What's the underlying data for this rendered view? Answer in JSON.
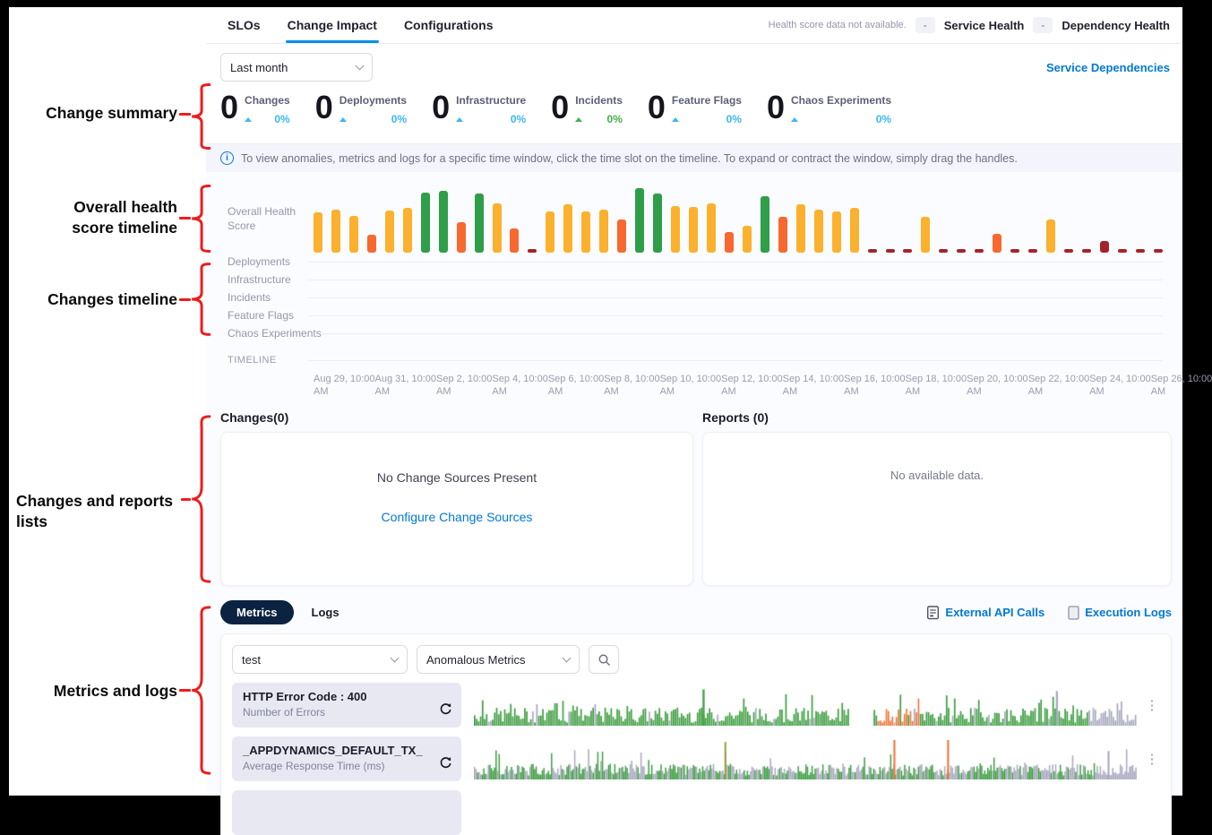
{
  "annotations": {
    "color": "#ee1c1c",
    "items": [
      {
        "line1": "Change summary",
        "line2": ""
      },
      {
        "line1": "Overall health",
        "line2": "score timeline"
      },
      {
        "line1": "Changes timeline",
        "line2": ""
      },
      {
        "line1": "Changes and reports",
        "line2": "lists"
      },
      {
        "line1": "Metrics and logs",
        "line2": ""
      }
    ]
  },
  "header": {
    "tabs": [
      {
        "label": "SLOs"
      },
      {
        "label": "Change Impact"
      },
      {
        "label": "Configurations"
      }
    ],
    "health_note": "Health score data not available.",
    "service_health": {
      "badge": "-",
      "label": "Service Health"
    },
    "dependency_health": {
      "badge": "-",
      "label": "Dependency Health"
    }
  },
  "toolbar": {
    "time_range": "Last month",
    "service_dependencies_label": "Service Dependencies"
  },
  "summary": {
    "items": [
      {
        "value": "0",
        "label": "Changes",
        "percent": "0%",
        "color": "#3cb9f1"
      },
      {
        "value": "0",
        "label": "Deployments",
        "percent": "0%",
        "color": "#3cb9f1"
      },
      {
        "value": "0",
        "label": "Infrastructure",
        "percent": "0%",
        "color": "#3cb9f1"
      },
      {
        "value": "0",
        "label": "Incidents",
        "percent": "0%",
        "color": "#41b14b"
      },
      {
        "value": "0",
        "label": "Feature Flags",
        "percent": "0%",
        "color": "#3cb9f1"
      },
      {
        "value": "0",
        "label": "Chaos Experiments",
        "percent": "0%",
        "color": "#3cb9f1"
      }
    ]
  },
  "info_banner": {
    "icon": "i",
    "text": "To view anomalies, metrics and logs for a specific time window, click the time slot on the timeline. To expand or contract the window, simply drag the handles."
  },
  "timeline": {
    "health_label": "Overall Health Score",
    "rows": [
      "Deployments",
      "Infrastructure",
      "Incidents",
      "Feature Flags",
      "Chaos Experiments"
    ],
    "timeline_label": "TIMELINE",
    "dates": [
      "Aug 29, 10:00 AM",
      "Aug 31, 10:00 AM",
      "Sep 2, 10:00 AM",
      "Sep 4, 10:00 AM",
      "Sep 6, 10:00 AM",
      "Sep 8, 10:00 AM",
      "Sep 10, 10:00 AM",
      "Sep 12, 10:00 AM",
      "Sep 14, 10:00 AM",
      "Sep 16, 10:00 AM",
      "Sep 18, 10:00 AM",
      "Sep 20, 10:00 AM",
      "Sep 22, 10:00 AM",
      "Sep 24, 10:00 AM",
      "Sep 26, 10:00 AM"
    ]
  },
  "changes_panel": {
    "title": "Changes(0)",
    "empty": "No Change Sources Present",
    "link": "Configure Change Sources"
  },
  "reports_panel": {
    "title": "Reports (0)",
    "empty": "No available data."
  },
  "metrics": {
    "tabs": [
      {
        "label": "Metrics"
      },
      {
        "label": "Logs"
      }
    ],
    "links": [
      {
        "label": "External API Calls"
      },
      {
        "label": "Execution Logs"
      }
    ],
    "service_filter": "test",
    "metric_filter": "Anomalous Metrics",
    "rows": [
      {
        "title": "HTTP Error Code : 400",
        "subtitle": "Number of Errors"
      },
      {
        "title": "_APPDYNAMICS_DEFAULT_TX_",
        "subtitle": "Average Response Time (ms)"
      }
    ],
    "kebab_icon": "⋮"
  },
  "chart_data": [
    {
      "id": "overall_health_score",
      "type": "bar",
      "title": "Overall Health Score",
      "x_range": [
        "Aug 29, 10:00 AM",
        "Sep 26, 10:00 AM"
      ],
      "colors": {
        "y": "#fbb12e",
        "o": "#f7692f",
        "g": "#2f9e49",
        "r": "#a5242c"
      },
      "bars": [
        [
          "y",
          58
        ],
        [
          "y",
          62
        ],
        [
          "y",
          52
        ],
        [
          "o",
          26
        ],
        [
          "y",
          60
        ],
        [
          "y",
          64
        ],
        [
          "g",
          86
        ],
        [
          "g",
          89
        ],
        [
          "o",
          44
        ],
        [
          "g",
          84
        ],
        [
          "y",
          71
        ],
        [
          "o",
          34
        ],
        [
          "r",
          5
        ],
        [
          "y",
          59
        ],
        [
          "y",
          69
        ],
        [
          "y",
          59
        ],
        [
          "y",
          61
        ],
        [
          "o",
          47
        ],
        [
          "g",
          92
        ],
        [
          "g",
          85
        ],
        [
          "y",
          67
        ],
        [
          "y",
          65
        ],
        [
          "y",
          71
        ],
        [
          "o",
          29
        ],
        [
          "y",
          39
        ],
        [
          "g",
          81
        ],
        [
          "o",
          51
        ],
        [
          "y",
          69
        ],
        [
          "y",
          61
        ],
        [
          "y",
          59
        ],
        [
          "y",
          64
        ],
        [
          "r",
          5
        ],
        [
          "r",
          5
        ],
        [
          "r",
          5
        ],
        [
          "y",
          51
        ],
        [
          "r",
          5
        ],
        [
          "r",
          5
        ],
        [
          "r",
          5
        ],
        [
          "o",
          27
        ],
        [
          "r",
          5
        ],
        [
          "r",
          5
        ],
        [
          "y",
          47
        ],
        [
          "r",
          5
        ],
        [
          "r",
          5
        ],
        [
          "r",
          17
        ],
        [
          "r",
          5
        ],
        [
          "r",
          5
        ],
        [
          "r",
          5
        ]
      ]
    },
    {
      "id": "metric_spark_1",
      "type": "bar",
      "metric": "HTTP Error Code : 400",
      "spec": {
        "seed": 7,
        "count": 330,
        "bw": 1.7,
        "base": 0.08,
        "var": 0.38,
        "tall_p": 0.1,
        "main": "green",
        "gray_p": 0.08,
        "gray_tail": 0.93,
        "gaps": [
          [
            0.565,
            0.603
          ]
        ],
        "orange": [
          [
            0.607,
            0.675
          ]
        ],
        "spikes": [
          {
            "x": 0.345,
            "h": 0.92,
            "c": "green"
          },
          {
            "x": 0.878,
            "h": 0.88,
            "c": "gray"
          }
        ],
        "colors": {
          "green": "#3e9e41",
          "gray": "#a8a9bf",
          "orange": "#f0763b",
          "olive": "#99a23c"
        }
      }
    },
    {
      "id": "metric_spark_2",
      "type": "bar",
      "metric": "_APPDYNAMICS_DEFAULT_TX_",
      "spec": {
        "seed": 13,
        "count": 430,
        "bw": 1.5,
        "base": 0.1,
        "var": 0.3,
        "tall_p": 0.05,
        "main": "green",
        "gray_p": 0.42,
        "gray_tail": 0.935,
        "gaps": [],
        "orange": [],
        "spikes": [
          {
            "x": 0.378,
            "h": 0.95,
            "c": "olive"
          },
          {
            "x": 0.633,
            "h": 1.0,
            "c": "orange"
          },
          {
            "x": 0.714,
            "h": 1.0,
            "c": "orange"
          },
          {
            "x": 0.956,
            "h": 0.72,
            "c": "gray"
          }
        ],
        "colors": {
          "green": "#3e9e41",
          "gray": "#a8a9bf",
          "orange": "#f0763b",
          "olive": "#99a23c"
        }
      }
    }
  ]
}
